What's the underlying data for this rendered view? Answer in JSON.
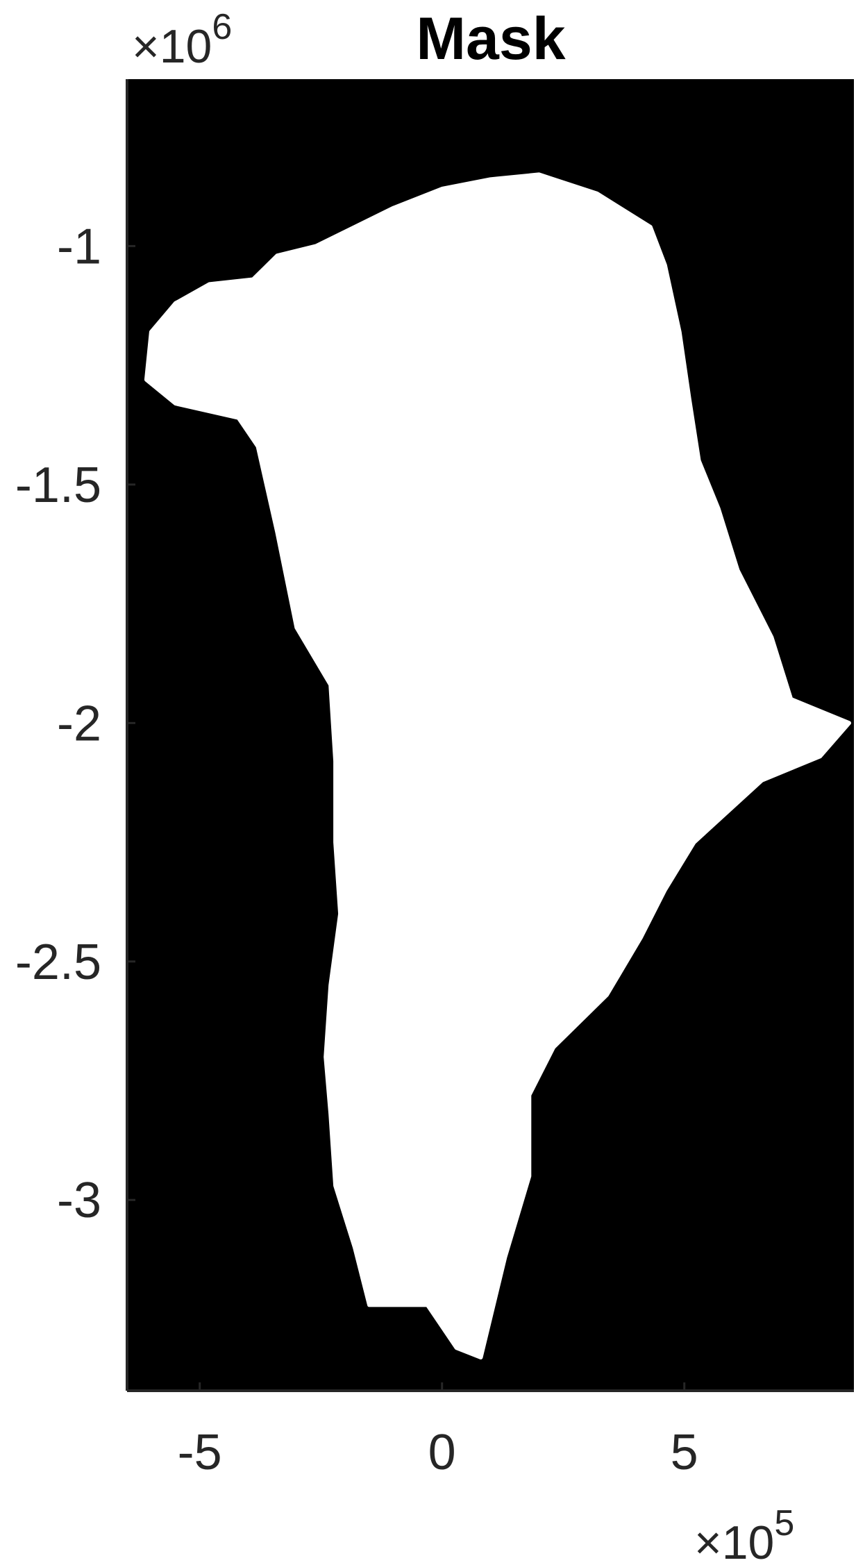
{
  "chart_data": {
    "type": "heatmap",
    "title": "Mask",
    "xlabel": "",
    "ylabel": "",
    "colors": {
      "background": "#000000",
      "mask": "#ffffff",
      "axis": "#262626"
    },
    "x_axis": {
      "exponent_label": "×10",
      "exponent": "5",
      "ticks": [
        -5,
        0,
        5
      ],
      "tick_labels": [
        "-5",
        "0",
        "5"
      ],
      "range": [
        -6.5,
        8.5
      ]
    },
    "y_axis": {
      "exponent_label": "×10",
      "exponent": "6",
      "ticks": [
        -1,
        -1.5,
        -2,
        -2.5,
        -3
      ],
      "tick_labels": [
        "-1",
        "-1.5",
        "-2",
        "-2.5",
        "-3"
      ],
      "range": [
        -3.4,
        -0.65
      ]
    },
    "grid": false,
    "legend": "none",
    "mask_outline_xy": [
      [
        -1.8,
        -0.96
      ],
      [
        -1.0,
        -0.92
      ],
      [
        0.0,
        -0.88
      ],
      [
        1.0,
        -0.86
      ],
      [
        2.0,
        -0.85
      ],
      [
        3.2,
        -0.89
      ],
      [
        4.3,
        -0.96
      ],
      [
        4.6,
        -1.04
      ],
      [
        4.9,
        -1.18
      ],
      [
        5.1,
        -1.32
      ],
      [
        5.3,
        -1.45
      ],
      [
        5.7,
        -1.55
      ],
      [
        6.1,
        -1.68
      ],
      [
        6.8,
        -1.82
      ],
      [
        7.2,
        -1.95
      ],
      [
        8.4,
        -2.0
      ],
      [
        7.8,
        -2.07
      ],
      [
        6.6,
        -2.12
      ],
      [
        5.2,
        -2.25
      ],
      [
        4.6,
        -2.35
      ],
      [
        4.1,
        -2.45
      ],
      [
        3.4,
        -2.57
      ],
      [
        2.3,
        -2.68
      ],
      [
        1.8,
        -2.78
      ],
      [
        1.8,
        -2.95
      ],
      [
        1.3,
        -3.12
      ],
      [
        0.8,
        -3.33
      ],
      [
        0.3,
        -3.31
      ],
      [
        -0.3,
        -3.22
      ],
      [
        -1.5,
        -3.22
      ],
      [
        -1.8,
        -3.1
      ],
      [
        -2.2,
        -2.97
      ],
      [
        -2.3,
        -2.82
      ],
      [
        -2.4,
        -2.7
      ],
      [
        -2.3,
        -2.55
      ],
      [
        -2.1,
        -2.4
      ],
      [
        -2.2,
        -2.25
      ],
      [
        -2.2,
        -2.08
      ],
      [
        -2.3,
        -1.92
      ],
      [
        -3.0,
        -1.8
      ],
      [
        -3.4,
        -1.6
      ],
      [
        -3.8,
        -1.42
      ],
      [
        -4.2,
        -1.36
      ],
      [
        -5.5,
        -1.33
      ],
      [
        -6.1,
        -1.28
      ],
      [
        -6.0,
        -1.18
      ],
      [
        -5.5,
        -1.12
      ],
      [
        -4.8,
        -1.08
      ],
      [
        -3.9,
        -1.07
      ],
      [
        -3.4,
        -1.02
      ],
      [
        -2.6,
        -1.0
      ]
    ]
  }
}
